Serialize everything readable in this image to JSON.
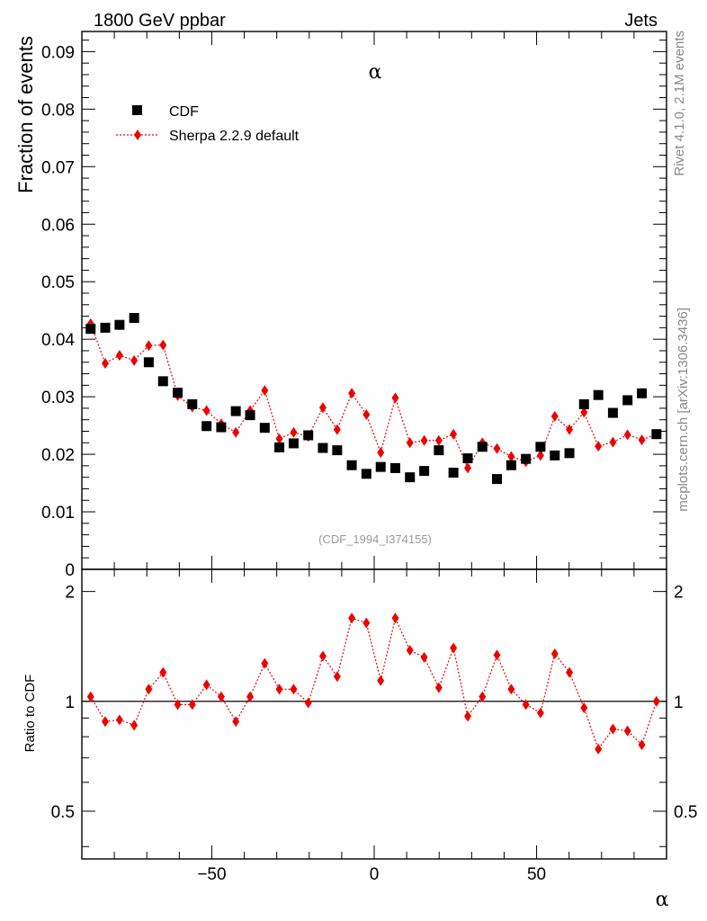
{
  "header": {
    "left": "1800 GeV ppbar",
    "right": "Jets"
  },
  "side_labels": {
    "top": "Rivet 4.1.0,  2.1M events",
    "bottom": "mcplots.cern.ch [arXiv:1306.3436]"
  },
  "reference": "(CDF_1994_I374155)",
  "colors": {
    "mc": "#ee0000",
    "data": "#000000"
  },
  "chart_data": [
    {
      "type": "scatter",
      "title": "α",
      "xlabel": "α",
      "ylabel": "Fraction of events",
      "xlim": [
        -90,
        90
      ],
      "ylim": [
        0,
        0.0935
      ],
      "yticks": [
        0,
        0.01,
        0.02,
        0.03,
        0.04,
        0.05,
        0.06,
        0.07,
        0.08,
        0.09
      ],
      "ytick_labels": [
        "0",
        "0.01",
        "0.02",
        "0.03",
        "0.04",
        "0.05",
        "0.06",
        "0.07",
        "0.08",
        "0.09"
      ],
      "legend": [
        {
          "name": "CDF",
          "marker": "square"
        },
        {
          "name": "Sherpa 2.2.9 default",
          "marker": "diamond-dotted-line"
        }
      ],
      "legend_position": "top-left",
      "series": [
        {
          "name": "CDF",
          "x": [
            -87.3,
            -82.8,
            -78.4,
            -73.9,
            -69.4,
            -65.0,
            -60.5,
            -56.0,
            -51.6,
            -47.1,
            -42.6,
            -38.2,
            -33.7,
            -29.2,
            -24.8,
            -20.3,
            -15.8,
            -11.4,
            -6.9,
            -2.4,
            2.0,
            6.5,
            11.0,
            15.4,
            19.9,
            24.4,
            28.8,
            33.3,
            37.8,
            42.2,
            46.7,
            51.2,
            55.6,
            60.1,
            64.6,
            69.0,
            73.5,
            78.0,
            82.4,
            86.9
          ],
          "values": [
            0.0418,
            0.042,
            0.0425,
            0.0437,
            0.036,
            0.0327,
            0.0307,
            0.0287,
            0.0249,
            0.0247,
            0.0275,
            0.0268,
            0.0246,
            0.0212,
            0.0219,
            0.0233,
            0.0211,
            0.0207,
            0.0181,
            0.0166,
            0.0178,
            0.0176,
            0.016,
            0.0171,
            0.0207,
            0.0168,
            0.0193,
            0.0213,
            0.0157,
            0.0181,
            0.0192,
            0.0213,
            0.0198,
            0.0202,
            0.0287,
            0.0303,
            0.0272,
            0.0294,
            0.0306,
            0.0235
          ]
        },
        {
          "name": "Sherpa 2.2.9 default",
          "x": [
            -87.3,
            -82.8,
            -78.4,
            -73.9,
            -69.4,
            -65.0,
            -60.5,
            -56.0,
            -51.6,
            -47.1,
            -42.6,
            -38.2,
            -33.7,
            -29.2,
            -24.8,
            -20.3,
            -15.8,
            -11.4,
            -6.9,
            -2.4,
            2.0,
            6.5,
            11.0,
            15.4,
            19.9,
            24.4,
            28.8,
            33.3,
            37.8,
            42.2,
            46.7,
            51.2,
            55.6,
            60.1,
            64.6,
            69.0,
            73.5,
            78.0,
            82.4,
            86.9
          ],
          "values": [
            0.0427,
            0.0358,
            0.0372,
            0.0363,
            0.0389,
            0.039,
            0.0302,
            0.0282,
            0.0276,
            0.0253,
            0.0238,
            0.0276,
            0.0311,
            0.0227,
            0.0238,
            0.0231,
            0.0281,
            0.0243,
            0.0306,
            0.0269,
            0.0203,
            0.0298,
            0.022,
            0.0224,
            0.0224,
            0.0235,
            0.0176,
            0.022,
            0.021,
            0.0196,
            0.0187,
            0.0198,
            0.0266,
            0.0243,
            0.0273,
            0.0214,
            0.0221,
            0.0234,
            0.0225,
            0.0235
          ]
        }
      ]
    },
    {
      "type": "line",
      "xlabel": "α",
      "ylabel": "Ratio to CDF",
      "xlim": [
        -90,
        90
      ],
      "ylim": [
        0.37,
        2.3
      ],
      "yscale": "log",
      "reference_line": 1,
      "yticks": [
        0.5,
        1,
        2
      ],
      "ytick_labels": [
        "0.5",
        "1",
        "2"
      ],
      "xticks": [
        -50,
        0,
        50
      ],
      "xtick_labels": [
        "−50",
        "0",
        "50"
      ],
      "series": [
        {
          "name": "Sherpa 2.2.9 default / CDF",
          "x": [
            -87.3,
            -82.8,
            -78.4,
            -73.9,
            -69.4,
            -65.0,
            -60.5,
            -56.0,
            -51.6,
            -47.1,
            -42.6,
            -38.2,
            -33.7,
            -29.2,
            -24.8,
            -20.3,
            -15.8,
            -11.4,
            -6.9,
            -2.4,
            2.0,
            6.5,
            11.0,
            15.4,
            19.9,
            24.4,
            28.8,
            33.3,
            37.8,
            42.2,
            46.7,
            51.2,
            55.6,
            60.1,
            64.6,
            69.0,
            73.5,
            78.0,
            82.4,
            86.9
          ],
          "values": [
            1.03,
            0.88,
            0.89,
            0.86,
            1.08,
            1.2,
            0.98,
            0.98,
            1.11,
            1.03,
            0.88,
            1.03,
            1.27,
            1.08,
            1.08,
            0.99,
            1.33,
            1.17,
            1.69,
            1.64,
            1.14,
            1.69,
            1.38,
            1.32,
            1.09,
            1.4,
            0.91,
            1.03,
            1.34,
            1.08,
            0.98,
            0.93,
            1.35,
            1.2,
            0.96,
            0.74,
            0.84,
            0.83,
            0.76,
            1.0
          ]
        }
      ]
    }
  ]
}
